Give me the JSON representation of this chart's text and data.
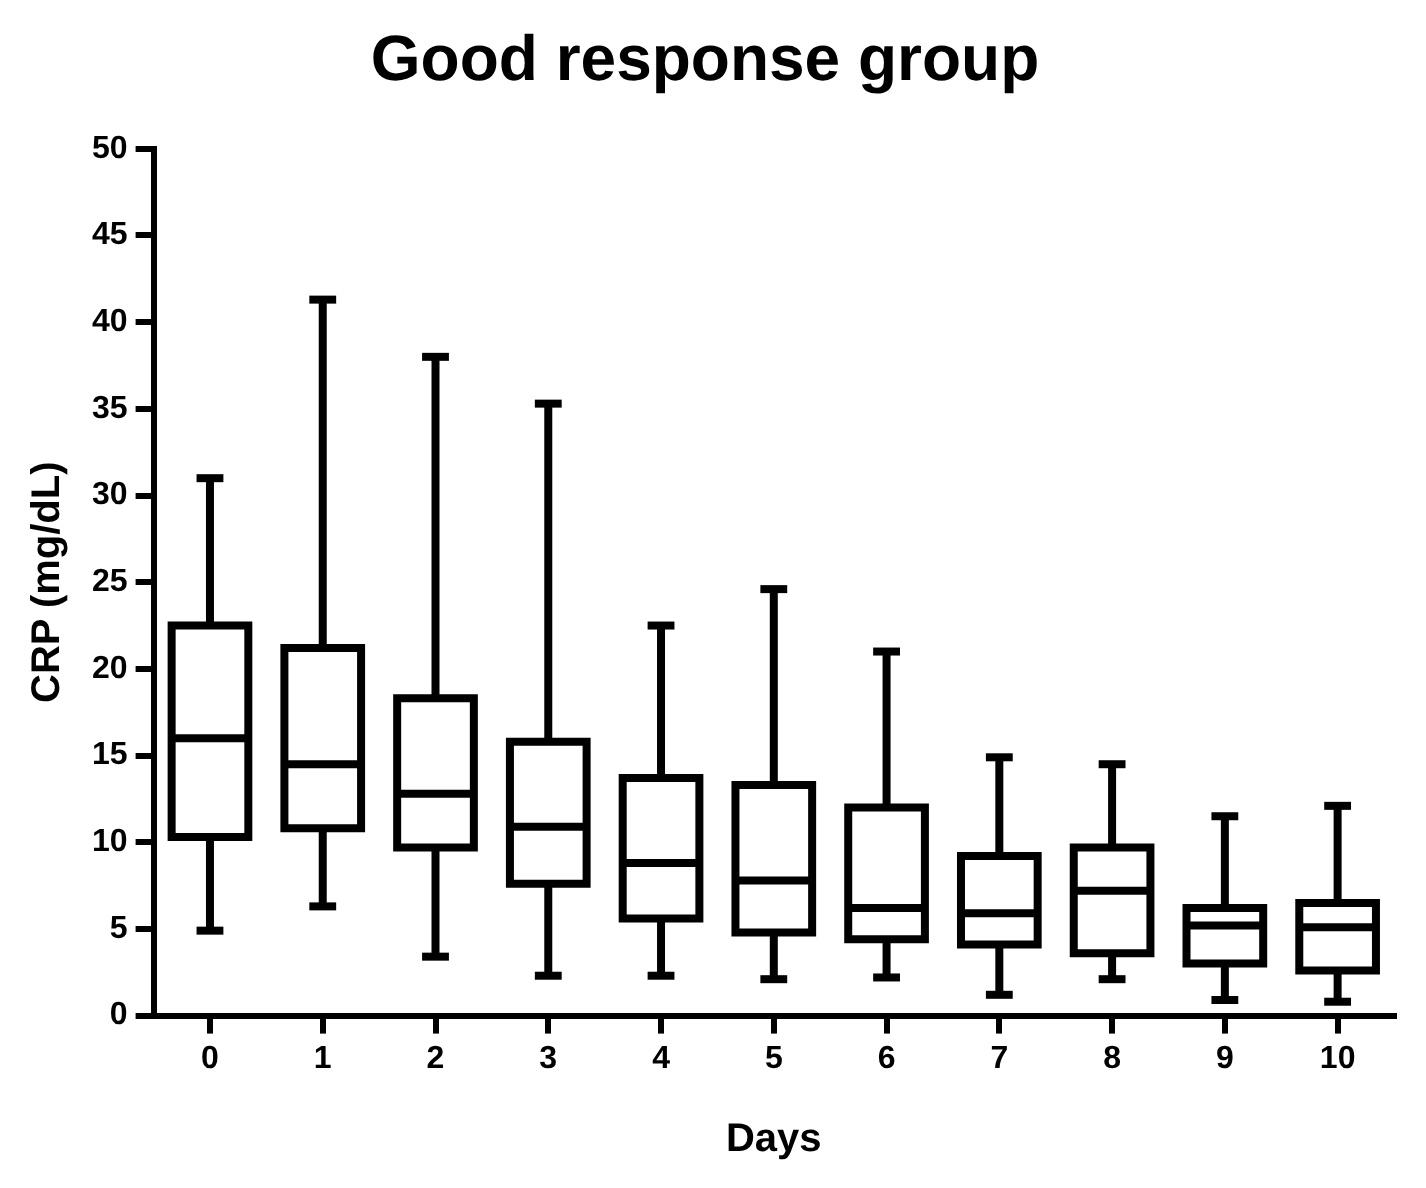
{
  "chart_data": {
    "type": "box",
    "title": "Good response group",
    "xlabel": "Days",
    "ylabel": "CRP (mg/dL)",
    "categories": [
      "0",
      "1",
      "2",
      "3",
      "4",
      "5",
      "6",
      "7",
      "8",
      "9",
      "10"
    ],
    "color": "#000000",
    "boxes": [
      {
        "low": 4.9,
        "q1": 10.3,
        "median": 16,
        "q3": 22.5,
        "high": 31
      },
      {
        "low": 6.3,
        "q1": 10.8,
        "median": 14.5,
        "q3": 21.2,
        "high": 41.3
      },
      {
        "low": 3.4,
        "q1": 9.7,
        "median": 12.8,
        "q3": 18.3,
        "high": 38
      },
      {
        "low": 2.3,
        "q1": 7.6,
        "median": 10.9,
        "q3": 15.8,
        "high": 35.3
      },
      {
        "low": 2.3,
        "q1": 5.6,
        "median": 8.8,
        "q3": 13.7,
        "high": 22.5
      },
      {
        "low": 2.1,
        "q1": 4.8,
        "median": 7.8,
        "q3": 13.3,
        "high": 24.6
      },
      {
        "low": 2.2,
        "q1": 4.4,
        "median": 6.2,
        "q3": 12,
        "high": 21
      },
      {
        "low": 1.2,
        "q1": 4.1,
        "median": 5.9,
        "q3": 9.2,
        "high": 14.9
      },
      {
        "low": 2.1,
        "q1": 3.6,
        "median": 7.2,
        "q3": 9.7,
        "high": 14.5
      },
      {
        "low": 0.9,
        "q1": 3,
        "median": 5.2,
        "q3": 6.2,
        "high": 11.5
      },
      {
        "low": 0.8,
        "q1": 2.6,
        "median": 5.1,
        "q3": 6.5,
        "high": 12.1
      }
    ],
    "ylim": [
      0,
      50
    ],
    "yticks": [
      0,
      5,
      10,
      15,
      20,
      25,
      30,
      35,
      40,
      45,
      50
    ],
    "grid": false,
    "legend": false
  }
}
